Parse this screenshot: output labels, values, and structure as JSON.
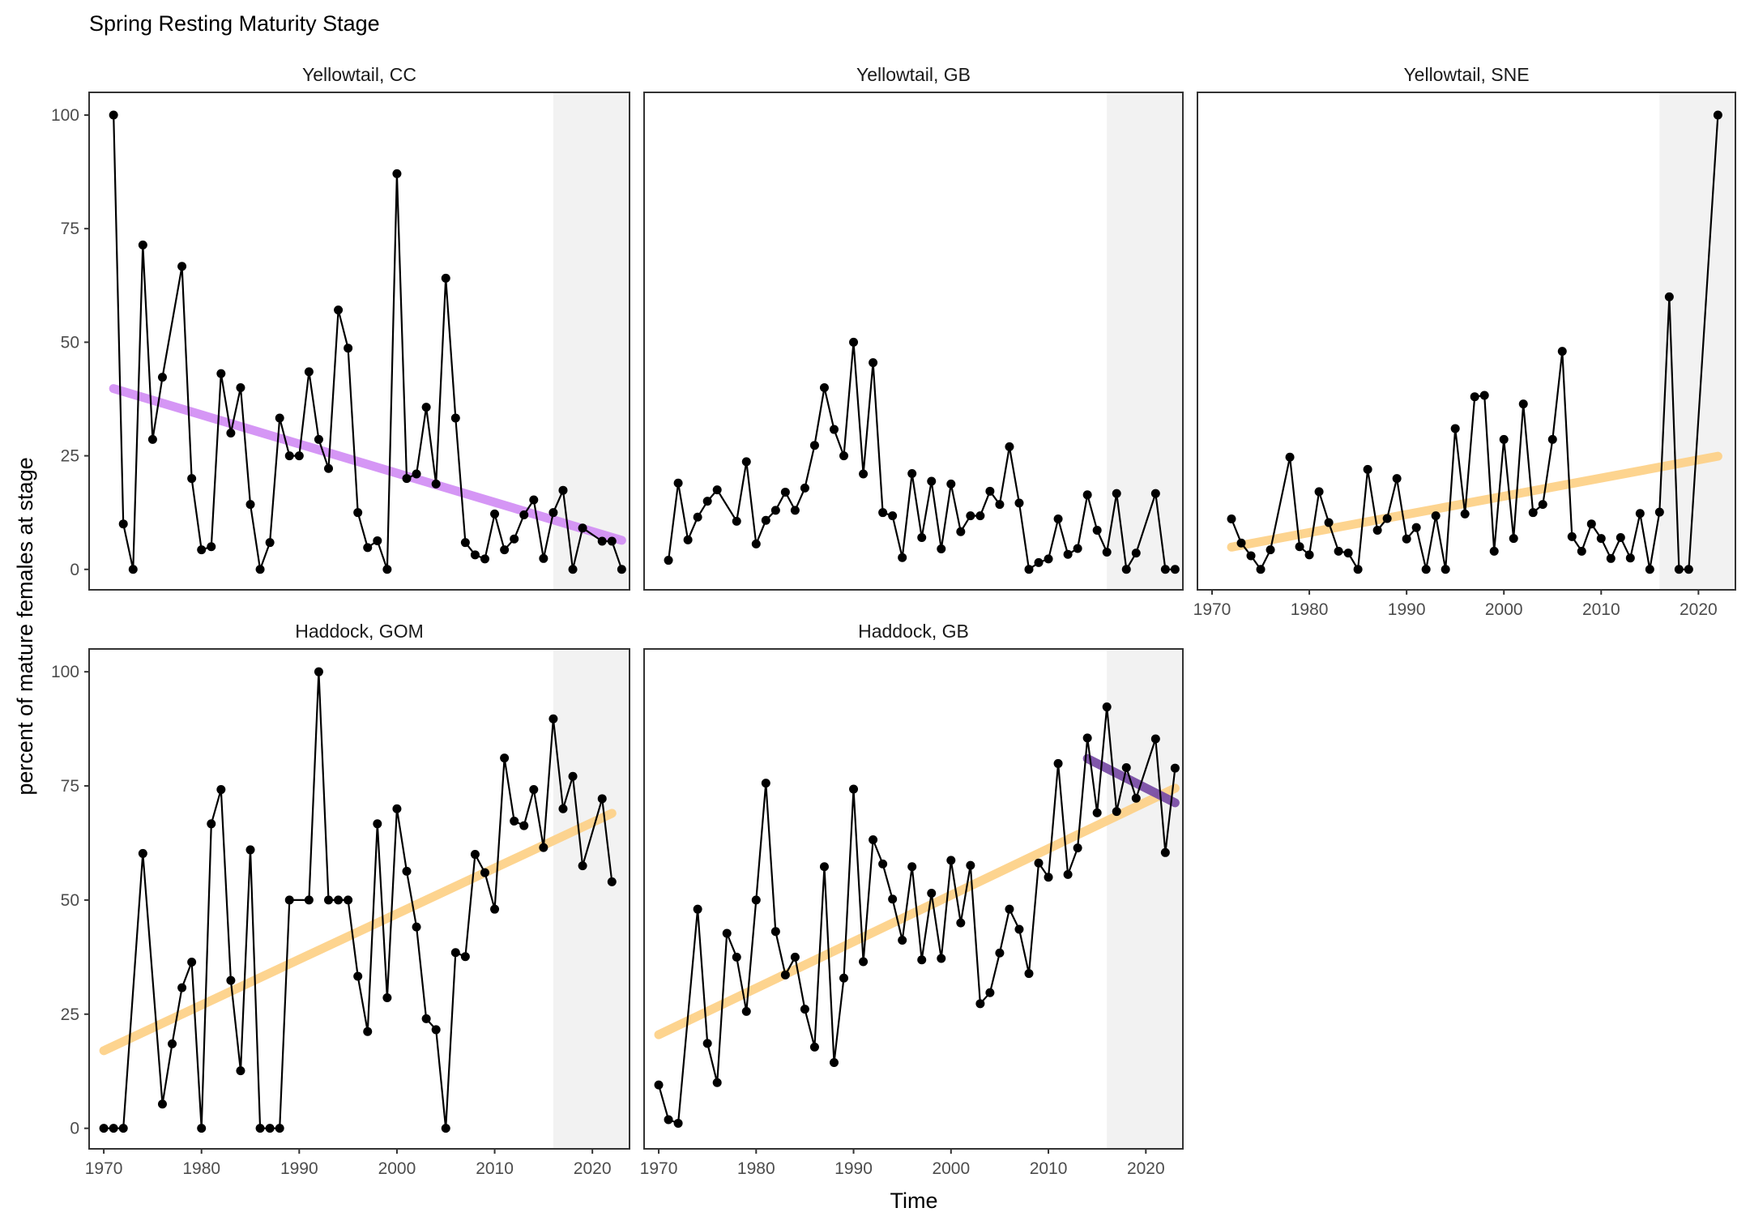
{
  "chart_data": {
    "type": "line",
    "title": "Spring Resting Maturity Stage",
    "xlabel": "Time",
    "ylabel": "percent of mature females at stage",
    "xlim": [
      1968.5,
      2023.8
    ],
    "ylim": [
      -4.5,
      105
    ],
    "x_ticks": [
      1970,
      1980,
      1990,
      2000,
      2010,
      2020
    ],
    "y_ticks": [
      0,
      25,
      50,
      75,
      100
    ],
    "grid": false,
    "shaded_period": [
      2016,
      2023.8
    ],
    "colors": {
      "points": "#000000",
      "line": "#000000",
      "trend_increase": "#fdd28a",
      "trend_decrease": "#d391f5",
      "trend_decrease_recent": "#7a4ea6",
      "shade": "#f2f2f2"
    },
    "panels": [
      {
        "name": "Yellowtail, CC",
        "x": [
          1971,
          1972,
          1973,
          1974,
          1975,
          1976,
          1978,
          1979,
          1980,
          1981,
          1982,
          1983,
          1984,
          1985,
          1986,
          1987,
          1988,
          1989,
          1990,
          1991,
          1992,
          1993,
          1994,
          1995,
          1996,
          1997,
          1998,
          1999,
          2000,
          2001,
          2002,
          2003,
          2004,
          2005,
          2006,
          2007,
          2008,
          2009,
          2010,
          2011,
          2012,
          2013,
          2014,
          2015,
          2016,
          2017,
          2018,
          2019,
          2021,
          2022,
          2023
        ],
        "y": [
          100,
          10,
          0,
          71.4,
          28.6,
          42.3,
          66.7,
          20,
          4.3,
          5,
          43.1,
          30,
          40,
          14.3,
          0,
          5.9,
          33.3,
          25,
          25,
          43.5,
          28.6,
          22.2,
          57.1,
          48.7,
          12.5,
          4.8,
          6.3,
          0,
          87.1,
          20,
          21,
          35.7,
          18.8,
          64.1,
          33.3,
          5.9,
          3.2,
          2.3,
          12.2,
          4.3,
          6.7,
          12,
          15.3,
          2.4,
          12.5,
          17.4,
          0,
          9.1,
          6.2,
          6.2,
          0
        ],
        "trends": [
          {
            "direction": "decrease",
            "x": [
              1971,
              2023
            ],
            "y": [
              39.8,
              6.4
            ]
          }
        ]
      },
      {
        "name": "Yellowtail, GB",
        "x": [
          1971,
          1972,
          1973,
          1974,
          1975,
          1976,
          1978,
          1979,
          1980,
          1981,
          1982,
          1983,
          1984,
          1985,
          1986,
          1987,
          1988,
          1989,
          1990,
          1991,
          1992,
          1993,
          1994,
          1995,
          1996,
          1997,
          1998,
          1999,
          2000,
          2001,
          2002,
          2003,
          2004,
          2005,
          2006,
          2007,
          2008,
          2009,
          2010,
          2011,
          2012,
          2013,
          2014,
          2015,
          2016,
          2017,
          2018,
          2019,
          2021,
          2022,
          2023
        ],
        "y": [
          2,
          19,
          6.5,
          11.5,
          15,
          17.5,
          10.6,
          23.7,
          5.6,
          10.8,
          13,
          17,
          13,
          17.9,
          27.3,
          40,
          30.8,
          25,
          50,
          21,
          45.5,
          12.5,
          11.8,
          2.6,
          21.1,
          7,
          19.4,
          4.5,
          18.8,
          8.3,
          11.8,
          11.8,
          17.2,
          14.3,
          27,
          14.6,
          0,
          1.5,
          2.3,
          11.1,
          3.3,
          4.6,
          16.4,
          8.6,
          3.8,
          16.7,
          0,
          3.6,
          16.7,
          0,
          0
        ],
        "trends": []
      },
      {
        "name": "Yellowtail, SNE",
        "x": [
          1972,
          1973,
          1974,
          1975,
          1976,
          1978,
          1979,
          1980,
          1981,
          1982,
          1983,
          1984,
          1985,
          1986,
          1987,
          1988,
          1989,
          1990,
          1991,
          1992,
          1993,
          1994,
          1995,
          1996,
          1997,
          1998,
          1999,
          2000,
          2001,
          2002,
          2003,
          2004,
          2005,
          2006,
          2007,
          2008,
          2009,
          2010,
          2011,
          2012,
          2013,
          2014,
          2015,
          2016,
          2017,
          2018,
          2019,
          2022
        ],
        "y": [
          11.1,
          5.8,
          3,
          0,
          4.3,
          24.7,
          5,
          3.2,
          17.1,
          10.3,
          4,
          3.6,
          0,
          22,
          8.6,
          11.2,
          20,
          6.7,
          9.2,
          0,
          11.8,
          0,
          31,
          12.2,
          38,
          38.3,
          4,
          28.6,
          6.8,
          36.4,
          12.5,
          14.3,
          28.6,
          48,
          7.2,
          4,
          10,
          6.8,
          2.4,
          7,
          2.5,
          12.3,
          0,
          12.6,
          60,
          0,
          0,
          100
        ],
        "trends": [
          {
            "direction": "increase",
            "x": [
              1972,
              2022
            ],
            "y": [
              4.9,
              24.9
            ]
          }
        ]
      },
      {
        "name": "Haddock, GOM",
        "x": [
          1970,
          1971,
          1972,
          1974,
          1976,
          1977,
          1978,
          1979,
          1980,
          1981,
          1982,
          1983,
          1984,
          1985,
          1986,
          1987,
          1988,
          1989,
          1991,
          1992,
          1993,
          1994,
          1995,
          1996,
          1997,
          1998,
          1999,
          2000,
          2001,
          2002,
          2003,
          2004,
          2005,
          2006,
          2007,
          2008,
          2009,
          2010,
          2011,
          2012,
          2013,
          2014,
          2015,
          2016,
          2017,
          2018,
          2019,
          2021,
          2022
        ],
        "y": [
          0,
          0,
          0,
          60.2,
          5.3,
          18.5,
          30.8,
          36.4,
          0,
          66.7,
          74.2,
          32.4,
          12.6,
          61,
          0,
          0,
          0,
          50,
          50,
          100,
          50,
          50,
          50,
          33.3,
          21.2,
          66.7,
          28.6,
          70,
          56.3,
          44.1,
          24,
          21.6,
          0,
          38.5,
          37.6,
          60,
          56,
          48,
          81.1,
          67.3,
          66.3,
          74.2,
          61.5,
          89.7,
          70,
          77.1,
          57.5,
          72.2,
          54
        ],
        "trends": [
          {
            "direction": "increase",
            "x": [
              1970,
              2022
            ],
            "y": [
              17,
              69
            ]
          }
        ]
      },
      {
        "name": "Haddock, GB",
        "x": [
          1970,
          1971,
          1972,
          1974,
          1975,
          1976,
          1977,
          1978,
          1979,
          1980,
          1981,
          1982,
          1983,
          1984,
          1985,
          1986,
          1987,
          1988,
          1989,
          1990,
          1991,
          1992,
          1993,
          1994,
          1995,
          1996,
          1997,
          1998,
          1999,
          2000,
          2001,
          2002,
          2003,
          2004,
          2005,
          2006,
          2007,
          2008,
          2009,
          2010,
          2011,
          2012,
          2013,
          2014,
          2015,
          2016,
          2017,
          2018,
          2019,
          2021,
          2022,
          2023
        ],
        "y": [
          9.5,
          1.9,
          1.1,
          48,
          18.6,
          10,
          42.7,
          37.5,
          25.6,
          50,
          75.6,
          43.1,
          33.6,
          37.5,
          26.1,
          17.8,
          57.3,
          14.4,
          32.9,
          74.3,
          36.5,
          63.2,
          57.9,
          50.2,
          41.2,
          57.3,
          36.9,
          51.5,
          37.2,
          58.7,
          45,
          57.6,
          27.3,
          29.7,
          38.4,
          48,
          43.6,
          33.9,
          58.1,
          55,
          79.9,
          55.6,
          61.4,
          85.5,
          69.1,
          92.3,
          69.4,
          79,
          72.3,
          85.3,
          60.4,
          78.9
        ],
        "trends": [
          {
            "direction": "increase",
            "x": [
              1970,
              2023
            ],
            "y": [
              20.5,
              74.5
            ]
          },
          {
            "direction": "decrease_recent",
            "x": [
              2014,
              2023
            ],
            "y": [
              81,
              71.3
            ]
          }
        ]
      }
    ]
  }
}
